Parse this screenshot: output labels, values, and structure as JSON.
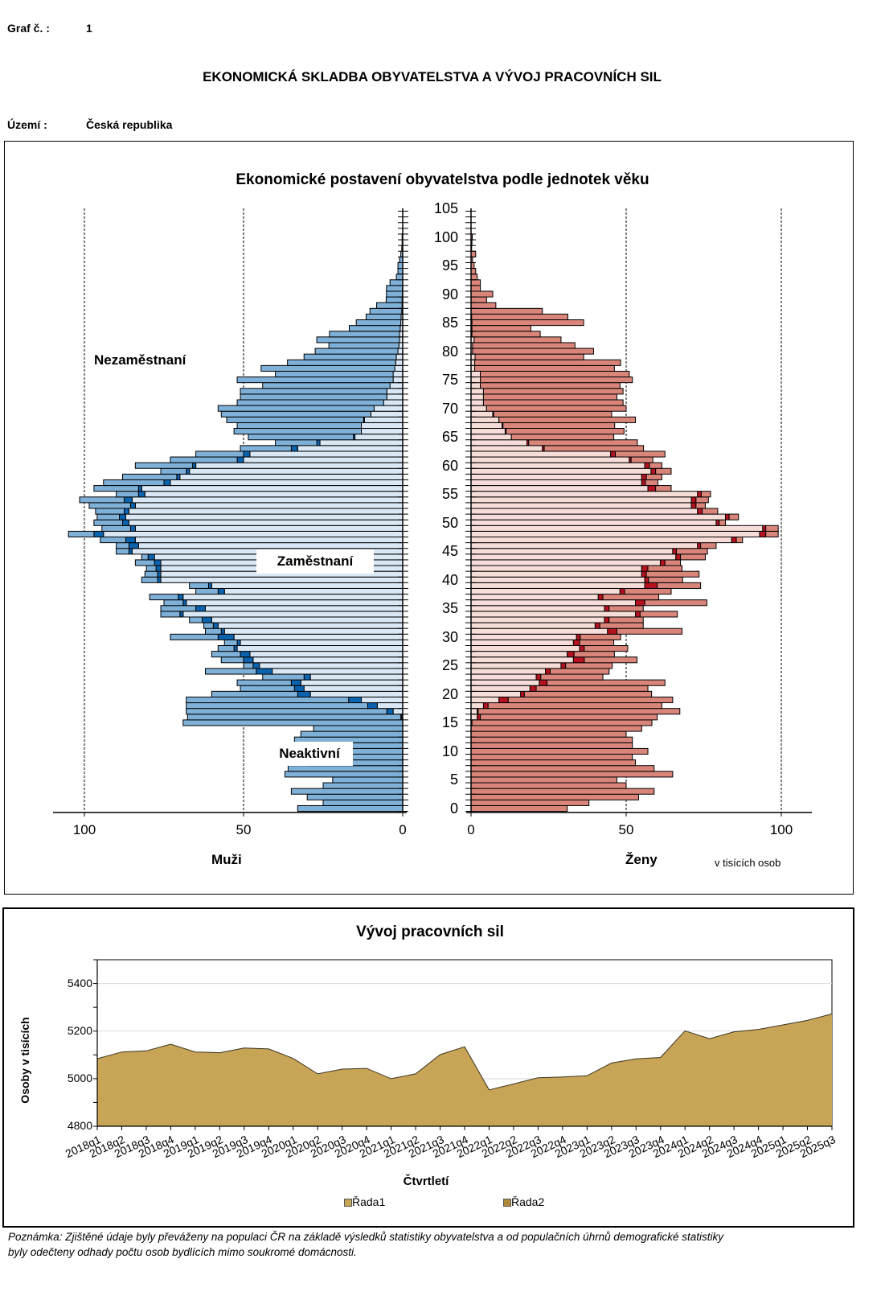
{
  "header": {
    "graf_label": "Graf č. :",
    "graf_number": "1",
    "main_title": "EKONOMICKÁ SKLADBA OBYVATELSTVA A VÝVOJ PRACOVNÍCH SIL",
    "territory_label": "Území :",
    "territory_value": "Česká republika"
  },
  "footnote": {
    "line1": "Poznámka: Zjištěné údaje byly převáženy na populaci ČR na základě výsledků statistiky obyvatelstva a od populačních úhrnů demografické statistiky",
    "line2": "byly odečteny odhady počtu osob bydlících mimo soukromé domácnosti."
  },
  "chart_data": [
    {
      "type": "bar",
      "subtype": "population-pyramid-stacked",
      "title": "Ekonomické postavení obyvatelstva podle jednotek věku",
      "unit_label": "v tisících  osob",
      "left_label": "Muži",
      "right_label": "Ženy",
      "annotations": [
        "Nezaměstnaní",
        "Zaměstnaní",
        "Neaktivní"
      ],
      "x_ticks_men": [
        "100",
        "50",
        "0"
      ],
      "x_ticks_women": [
        "0",
        "50",
        "100"
      ],
      "xlim": [
        0,
        110
      ],
      "y_ticks": [
        "0",
        "5",
        "10",
        "15",
        "20",
        "25",
        "30",
        "35",
        "40",
        "45",
        "50",
        "55",
        "60",
        "65",
        "70",
        "75",
        "80",
        "85",
        "90",
        "95",
        "100",
        "105"
      ],
      "ylim": [
        0,
        105
      ],
      "grid": "dashed vertical at 50 and 100",
      "series_names": [
        "Zaměstnaní",
        "Nezaměstnaní",
        "Neaktivní"
      ],
      "colors": {
        "men_employed": "#dae8f5",
        "men_unemployed": "#0b63ae",
        "men_inactive": "#7eb0d8",
        "women_employed": "#f6ddd8",
        "women_unemployed": "#b5121f",
        "women_inactive": "#d9857a"
      },
      "ages": [
        0,
        1,
        2,
        3,
        4,
        5,
        6,
        7,
        8,
        9,
        10,
        11,
        12,
        13,
        14,
        15,
        16,
        17,
        18,
        19,
        20,
        21,
        22,
        23,
        24,
        25,
        26,
        27,
        28,
        29,
        30,
        31,
        32,
        33,
        34,
        35,
        36,
        37,
        38,
        39,
        40,
        41,
        42,
        43,
        44,
        45,
        46,
        47,
        48,
        49,
        50,
        51,
        52,
        53,
        54,
        55,
        56,
        57,
        58,
        59,
        60,
        61,
        62,
        63,
        64,
        65,
        66,
        67,
        68,
        69,
        70,
        71,
        72,
        73,
        74,
        75,
        76,
        77,
        78,
        79,
        80,
        81,
        82,
        83,
        84,
        85,
        86,
        87,
        88,
        89,
        90,
        91,
        92,
        93,
        94,
        95,
        96,
        97,
        98,
        99,
        100
      ],
      "men": {
        "employed": [
          0,
          0,
          0,
          0,
          0,
          0,
          0,
          0,
          0,
          0,
          0,
          0,
          0,
          0,
          0,
          0,
          0.3,
          3,
          8,
          13,
          29,
          31,
          32,
          29,
          41,
          45,
          47,
          48,
          52,
          51,
          53,
          56,
          58,
          60,
          69,
          62,
          68,
          69,
          56,
          60,
          76,
          76,
          76,
          76,
          78,
          85,
          83,
          84,
          94,
          84,
          86,
          87,
          86,
          84,
          85,
          81,
          82,
          73,
          70,
          67,
          65,
          50,
          48,
          33,
          26,
          15,
          13,
          13,
          12,
          10,
          9,
          6,
          5,
          5,
          4,
          3,
          3,
          2.5,
          2.2,
          2.0,
          1.5,
          1.2,
          1,
          1,
          0.8,
          0.6,
          0.5,
          0.3,
          0.2,
          0.2,
          0.1,
          0.1,
          0,
          0,
          0,
          0,
          0,
          0,
          0,
          0,
          0
        ],
        "unemployed": [
          0,
          0,
          0,
          0,
          0,
          0,
          0,
          0,
          0,
          0,
          0,
          0,
          0,
          0,
          0,
          0,
          0.3,
          2,
          3,
          4,
          4,
          3,
          3,
          2,
          5,
          2,
          3,
          3,
          1,
          1,
          5,
          1,
          1.5,
          3,
          1,
          3,
          1,
          1.5,
          2,
          1,
          1,
          1,
          1.5,
          2,
          2,
          1,
          3,
          3,
          3,
          1.5,
          2,
          2,
          1.5,
          1.5,
          2.5,
          2,
          1,
          2,
          1,
          1,
          1,
          2,
          2,
          2,
          1,
          0.5,
          0,
          0,
          0.3,
          0,
          0,
          0,
          0,
          0,
          0,
          0,
          0,
          0,
          0,
          0,
          0,
          0,
          0,
          0,
          0,
          0,
          0,
          0,
          0,
          0,
          0,
          0,
          0,
          0,
          0,
          0,
          0,
          0,
          0,
          0,
          0
        ],
        "inactive": [
          33,
          25,
          30,
          35,
          25,
          22,
          37,
          36,
          29,
          32,
          38,
          30,
          34,
          32,
          28,
          69,
          67,
          63,
          57,
          51,
          27,
          17,
          17,
          13,
          16,
          3,
          7,
          9,
          5,
          4,
          15,
          5,
          3,
          4,
          6,
          11,
          6,
          9,
          7,
          6,
          5,
          4,
          3,
          6,
          2,
          4,
          4,
          8,
          8,
          9,
          9,
          7,
          9,
          13,
          14,
          7,
          14,
          19,
          17,
          8,
          18,
          21,
          15,
          16,
          13,
          33,
          40,
          39,
          43,
          47,
          49,
          46,
          46,
          46,
          40,
          49,
          37,
          42,
          34,
          29,
          26,
          22,
          26,
          22,
          16,
          14,
          11,
          10,
          8,
          5,
          5,
          5,
          4,
          2,
          1.5,
          1.5,
          1,
          0.6,
          0.3,
          0.2,
          0.2
        ]
      },
      "women": {
        "employed": [
          0,
          0,
          0,
          0,
          0,
          0,
          0,
          0,
          0,
          0,
          0,
          0,
          0,
          0,
          0,
          0.3,
          2,
          2,
          4,
          9,
          16,
          19,
          22,
          21,
          24,
          29,
          33,
          31,
          35,
          33,
          34,
          44,
          40,
          43,
          53,
          43,
          53,
          41,
          48,
          56,
          56,
          55,
          55,
          61,
          66,
          65,
          73,
          84,
          93,
          94,
          79,
          82,
          73,
          71,
          71,
          73,
          57,
          55,
          55,
          58,
          56,
          51,
          45,
          23,
          18,
          13,
          11,
          10,
          9,
          7,
          5,
          4,
          4,
          4,
          3,
          3,
          3,
          1.2,
          1.2,
          1.3,
          0.5,
          0.5,
          1,
          0.3,
          0.3,
          0.3,
          0.2,
          0,
          0,
          0,
          0,
          0,
          0,
          0,
          0,
          0,
          0,
          0,
          0,
          0,
          0
        ],
        "unemployed": [
          0,
          0,
          0,
          0,
          0,
          0,
          0,
          0,
          0,
          0,
          0,
          0,
          0,
          0,
          0,
          0,
          1,
          0.3,
          1.5,
          3,
          1.2,
          2,
          2.5,
          1.5,
          1.5,
          1.5,
          3.5,
          2.2,
          1.5,
          2,
          1.2,
          3,
          1.5,
          1.5,
          1.5,
          1.5,
          3,
          1.5,
          1.5,
          4,
          1.2,
          1.5,
          2,
          1.5,
          1.5,
          1.2,
          1,
          1.5,
          2,
          1,
          1,
          1.2,
          1.5,
          1.5,
          1.5,
          1.2,
          2.5,
          1.2,
          1.5,
          1.5,
          1.5,
          0.6,
          1.5,
          0.6,
          0.6,
          0,
          0.3,
          0.3,
          0,
          0.3,
          0,
          0,
          0,
          0,
          0,
          0,
          0,
          0,
          0,
          0,
          0,
          0,
          0,
          0,
          0,
          0,
          0,
          0,
          0,
          0,
          0,
          0,
          0,
          0,
          0,
          0,
          0,
          0,
          0,
          0,
          0
        ],
        "inactive": [
          31,
          38,
          54,
          59,
          50,
          47,
          65,
          59,
          53,
          52,
          57,
          52,
          52,
          50,
          55,
          58,
          57,
          65,
          56,
          53,
          41,
          36,
          38,
          20,
          19,
          15,
          17,
          13,
          14,
          11,
          13,
          21,
          14,
          11,
          12,
          11,
          20,
          18,
          15,
          14,
          11,
          17,
          11,
          5,
          8,
          10,
          5,
          2,
          4,
          4,
          2,
          3,
          5,
          3,
          4,
          3,
          5,
          4,
          5,
          5,
          4,
          7,
          16,
          32,
          35,
          33,
          38,
          36,
          44,
          38,
          45,
          45,
          43,
          45,
          45,
          49,
          48,
          45,
          47,
          35,
          39,
          33,
          28,
          22,
          19,
          36,
          31,
          23,
          8,
          5,
          7,
          3,
          3,
          2,
          1.5,
          1,
          0.5,
          1.5,
          0.2,
          0.3,
          0.4
        ]
      }
    },
    {
      "type": "area",
      "title": "Vývoj pracovních sil",
      "xlabel": "Čtvrtletí",
      "ylabel": "Osoby v tisících",
      "ylim": [
        4800,
        5500
      ],
      "y_ticks": [
        4800,
        5000,
        5200,
        5400
      ],
      "grid": "horizontal",
      "legend": "bottom",
      "legend_entries": [
        "Řada1",
        "Řada2"
      ],
      "fill_color": "#c8a456",
      "categories": [
        "2018q1",
        "2018q2",
        "2018q3",
        "2018q4",
        "2019q1",
        "2019q2",
        "2019q3",
        "2019q4",
        "2020q1",
        "2020q2",
        "2020q3",
        "2020q4",
        "2021q1",
        "2021q2",
        "2021q3",
        "2021q4",
        "2022q1",
        "2022q2",
        "2022q3",
        "2022q4",
        "2023q1",
        "2023q2",
        "2023q3",
        "2023q4",
        "2024q1",
        "2024q2",
        "2024q3",
        "2024q4",
        "2025q1",
        "2025q2",
        "2025q3"
      ],
      "series": [
        {
          "name": "Řada1",
          "values": [
            5084,
            5112,
            5117,
            5145,
            5112,
            5109,
            5129,
            5125,
            5085,
            5020,
            5040,
            5043,
            5000,
            5020,
            5101,
            5134,
            4953,
            4978,
            5004,
            5007,
            5012,
            5066,
            5083,
            5089,
            5201,
            5168,
            5197,
            5207,
            5226,
            5245,
            5272
          ]
        }
      ]
    }
  ]
}
